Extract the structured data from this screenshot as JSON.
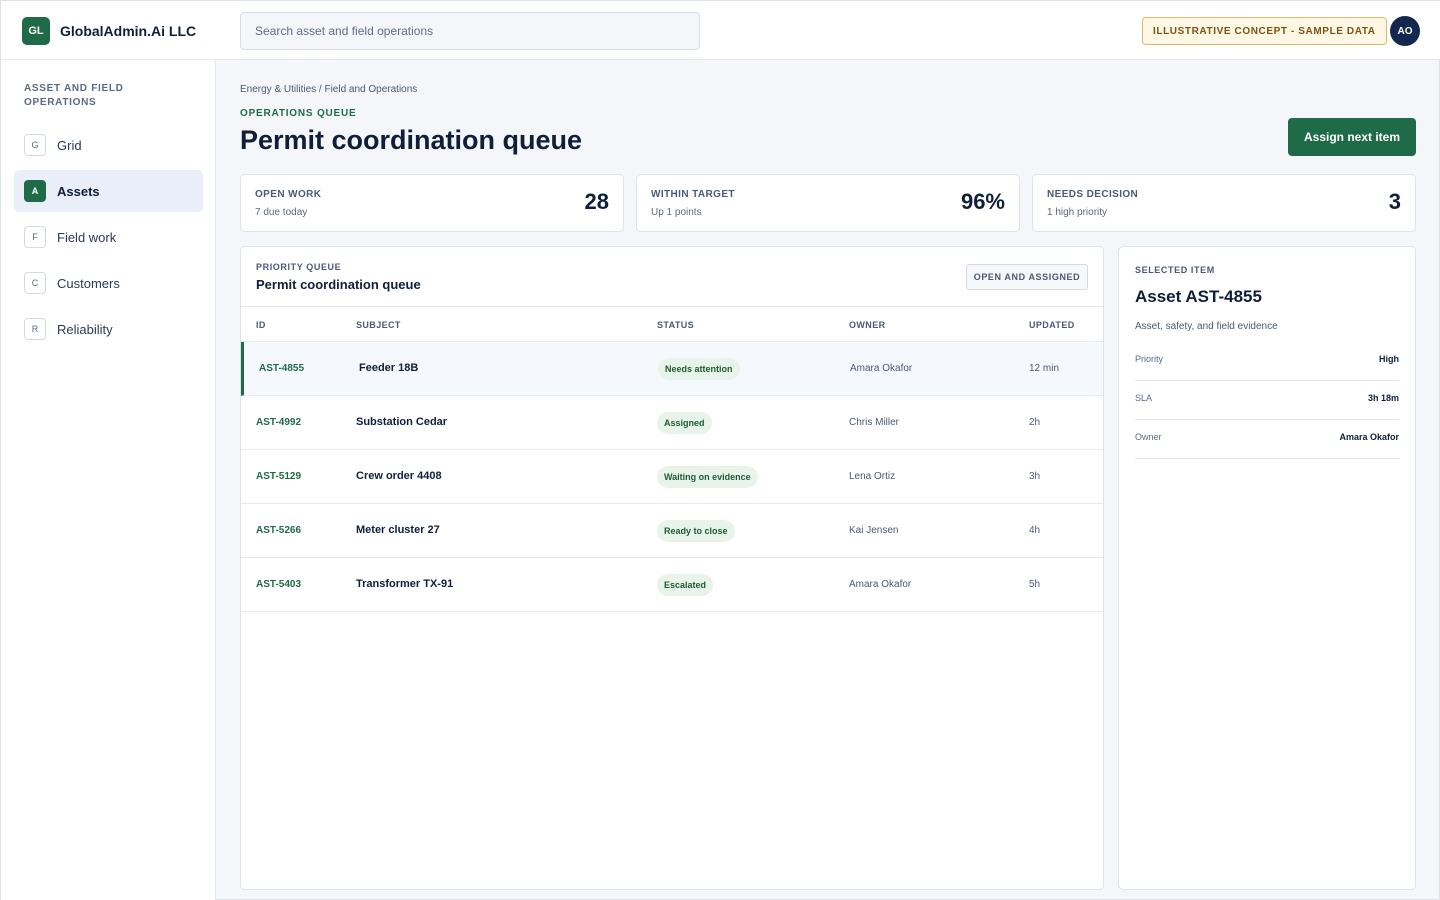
{
  "brand": {
    "logo": "GL",
    "name": "GlobalAdmin.Ai LLC"
  },
  "search": {
    "placeholder": "Search asset and field operations"
  },
  "concept_badge": "ILLUSTRATIVE CONCEPT - SAMPLE DATA",
  "user": {
    "initials": "AO"
  },
  "sidebar": {
    "title": "ASSET AND FIELD OPERATIONS",
    "items": [
      {
        "key": "G",
        "label": "Grid",
        "active": false
      },
      {
        "key": "A",
        "label": "Assets",
        "active": true
      },
      {
        "key": "F",
        "label": "Field work",
        "active": false
      },
      {
        "key": "C",
        "label": "Customers",
        "active": false
      },
      {
        "key": "R",
        "label": "Reliability",
        "active": false
      }
    ]
  },
  "main": {
    "breadcrumb": "Energy & Utilities / Field and Operations",
    "eyebrow": "OPERATIONS QUEUE",
    "title": "Permit coordination queue",
    "primary_action": "Assign next item"
  },
  "metrics": [
    {
      "label": "OPEN WORK",
      "sub": "7 due today",
      "value": "28"
    },
    {
      "label": "WITHIN TARGET",
      "sub": "Up 1 points",
      "value": "96%"
    },
    {
      "label": "NEEDS DECISION",
      "sub": "1 high priority",
      "value": "3"
    }
  ],
  "queue": {
    "eyebrow": "PRIORITY QUEUE",
    "title": "Permit coordination queue",
    "filter": "OPEN AND ASSIGNED",
    "columns": [
      "ID",
      "SUBJECT",
      "STATUS",
      "OWNER",
      "UPDATED"
    ],
    "rows": [
      {
        "id": "AST-4855",
        "subject": "Feeder 18B",
        "status": "Needs attention",
        "owner": "Amara Okafor",
        "updated": "12 min",
        "selected": true
      },
      {
        "id": "AST-4992",
        "subject": "Substation Cedar",
        "status": "Assigned",
        "owner": "Chris Miller",
        "updated": "2h",
        "selected": false
      },
      {
        "id": "AST-5129",
        "subject": "Crew order 4408",
        "status": "Waiting on evidence",
        "owner": "Lena Ortiz",
        "updated": "3h",
        "selected": false
      },
      {
        "id": "AST-5266",
        "subject": "Meter cluster 27",
        "status": "Ready to close",
        "owner": "Kai Jensen",
        "updated": "4h",
        "selected": false
      },
      {
        "id": "AST-5403",
        "subject": "Transformer TX-91",
        "status": "Escalated",
        "owner": "Amara Okafor",
        "updated": "5h",
        "selected": false
      }
    ]
  },
  "detail": {
    "eyebrow": "SELECTED ITEM",
    "title": "Asset AST-4855",
    "description": "Asset, safety, and field evidence",
    "fields": [
      {
        "key": "Priority",
        "value": "High"
      },
      {
        "key": "SLA",
        "value": "3h 18m"
      },
      {
        "key": "Owner",
        "value": "Amara Okafor"
      }
    ]
  },
  "colors": {
    "accent": "#1f6b48",
    "navy": "#14284f",
    "status_bg": "#e8f4ea",
    "badge_border": "#e0b867"
  }
}
